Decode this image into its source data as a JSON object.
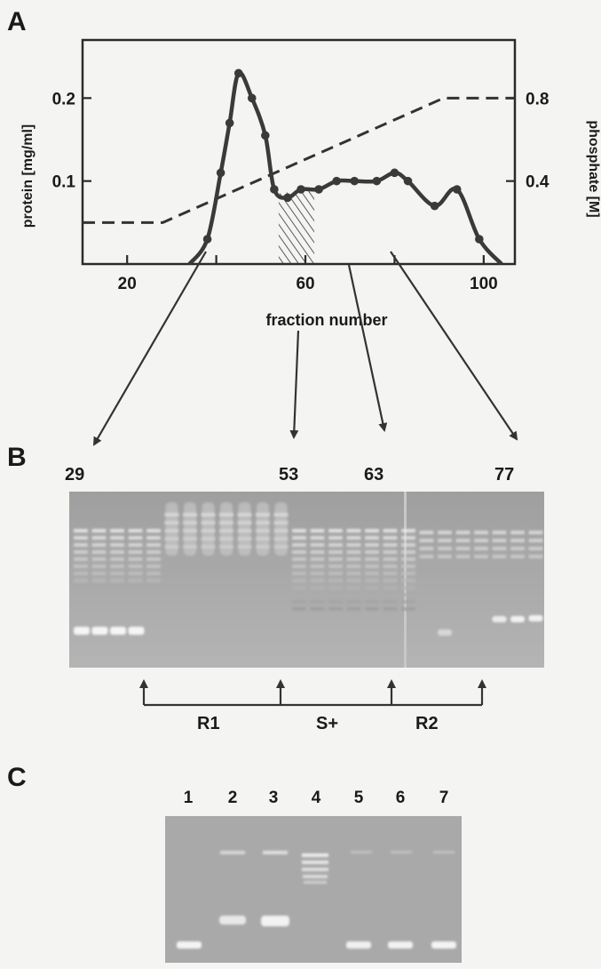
{
  "panels": {
    "a": "A",
    "b": "B",
    "c": "C"
  },
  "chart_data": {
    "type": "line",
    "xlabel": "fraction number",
    "ylabel": "protein [mg/ml]",
    "y2label": "phosphate [M]",
    "xlim": [
      10,
      107
    ],
    "ylim": [
      0,
      0.27
    ],
    "y2lim": [
      0,
      1.08
    ],
    "xticks": [
      20,
      40,
      60,
      80,
      100
    ],
    "xtick_labels": [
      "20",
      "",
      "60",
      "",
      "100"
    ],
    "yticks": [
      0.1,
      0.2
    ],
    "ytick_labels": [
      "0.1",
      "0.2"
    ],
    "y2ticks": [
      0.4,
      0.8
    ],
    "y2tick_labels": [
      "0.4",
      "0.8"
    ],
    "grid": false,
    "shaded_region": [
      54,
      62
    ],
    "series": [
      {
        "style": "solid-with-markers",
        "points": [
          [
            38,
            0.03
          ],
          [
            41,
            0.11
          ],
          [
            43,
            0.17
          ],
          [
            45,
            0.23
          ],
          [
            48,
            0.2
          ],
          [
            51,
            0.155
          ],
          [
            53,
            0.09
          ],
          [
            56,
            0.08
          ],
          [
            59,
            0.09
          ],
          [
            63,
            0.09
          ],
          [
            67,
            0.1
          ],
          [
            71,
            0.1
          ],
          [
            76,
            0.1
          ],
          [
            80,
            0.11
          ],
          [
            83,
            0.1
          ],
          [
            89,
            0.07
          ],
          [
            94,
            0.09
          ],
          [
            99,
            0.03
          ]
        ]
      },
      {
        "style": "dashed",
        "axis": "right",
        "points": [
          [
            10,
            0.2
          ],
          [
            28,
            0.2
          ],
          [
            91,
            0.8
          ],
          [
            107,
            0.8
          ]
        ]
      }
    ]
  },
  "gel_b": {
    "fraction_labels": [
      "29",
      "53",
      "63",
      "77"
    ],
    "region_labels": [
      "R1",
      "S+",
      "R2"
    ]
  },
  "gel_c": {
    "lane_labels": [
      "1",
      "2",
      "3",
      "4",
      "5",
      "6",
      "7"
    ]
  }
}
